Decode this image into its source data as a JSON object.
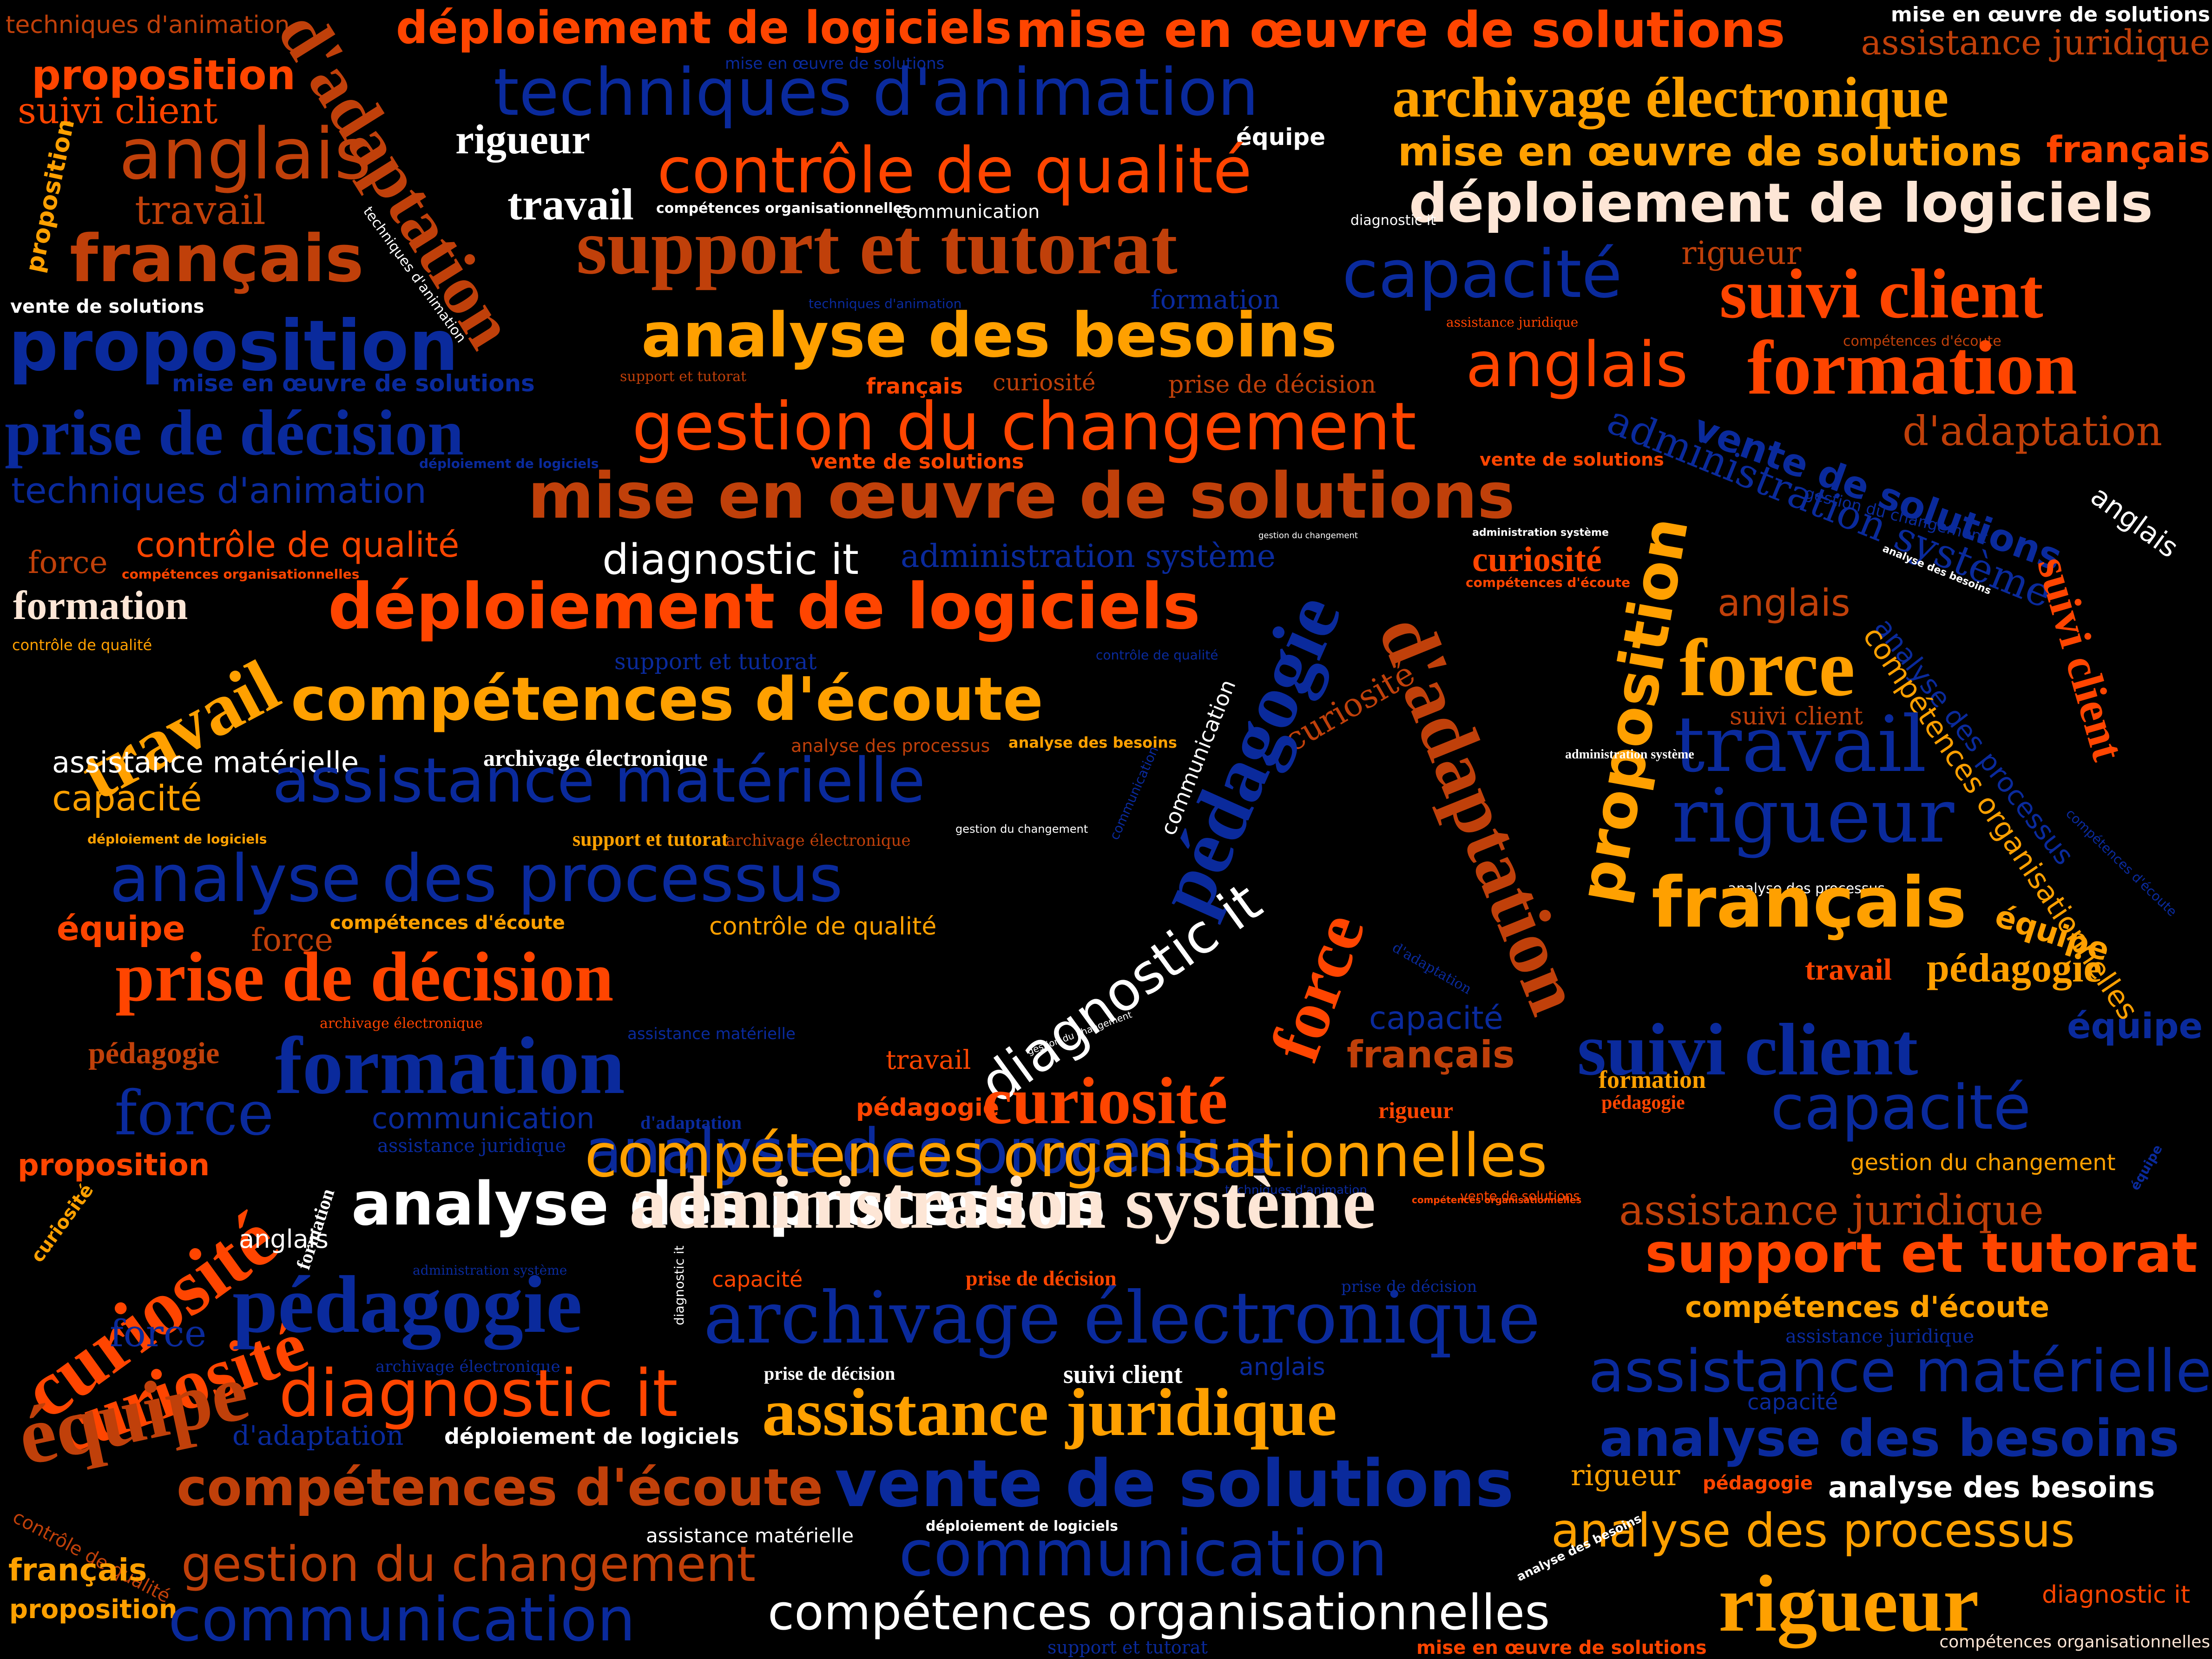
{
  "palette": {
    "blue": "#0a2a9c",
    "orange": "#ff5a1a",
    "red_orange": "#ff4500",
    "brown": "#c0400a",
    "amber": "#ffa000",
    "cream": "#fde6d6",
    "white": "#ffffff"
  },
  "words": [
    {
      "text": "techniques d'animation",
      "color": "brown"
    },
    {
      "text": "déploiement de logiciels",
      "color": "red_orange"
    },
    {
      "text": "mise en œuvre de solutions",
      "color": "red_orange"
    },
    {
      "text": "mise en œuvre de solutions",
      "color": "white"
    },
    {
      "text": "proposition",
      "color": "red_orange"
    },
    {
      "text": "d'adaptation",
      "color": "brown"
    },
    {
      "text": "techniques d'animation",
      "color": "blue"
    },
    {
      "text": "mise en œuvre de solutions",
      "color": "blue"
    },
    {
      "text": "assistance juridique",
      "color": "brown"
    },
    {
      "text": "suivi client",
      "color": "red_orange"
    },
    {
      "text": "archivage électronique",
      "color": "amber"
    },
    {
      "text": "anglais",
      "color": "brown"
    },
    {
      "text": "rigueur",
      "color": "white"
    },
    {
      "text": "équipe",
      "color": "white"
    },
    {
      "text": "mise en œuvre de solutions",
      "color": "amber"
    },
    {
      "text": "français",
      "color": "red_orange"
    },
    {
      "text": "proposition",
      "color": "amber"
    },
    {
      "text": "contrôle de qualité",
      "color": "red_orange"
    },
    {
      "text": "travail",
      "color": "brown"
    },
    {
      "text": "travail",
      "color": "white"
    },
    {
      "text": "compétences organisationnelles",
      "color": "white"
    },
    {
      "text": "communication",
      "color": "white"
    },
    {
      "text": "déploiement de logiciels",
      "color": "cream"
    },
    {
      "text": "français",
      "color": "brown"
    },
    {
      "text": "support et tutorat",
      "color": "brown"
    },
    {
      "text": "techniques d'animation",
      "color": "white"
    },
    {
      "text": "diagnostic it",
      "color": "white"
    },
    {
      "text": "capacité",
      "color": "blue"
    },
    {
      "text": "rigueur",
      "color": "brown"
    },
    {
      "text": "vente de solutions",
      "color": "white"
    },
    {
      "text": "techniques d'animation",
      "color": "blue"
    },
    {
      "text": "formation",
      "color": "blue"
    },
    {
      "text": "suivi client",
      "color": "red_orange"
    },
    {
      "text": "proposition",
      "color": "blue"
    },
    {
      "text": "analyse des besoins",
      "color": "amber"
    },
    {
      "text": "assistance juridique",
      "color": "red_orange"
    },
    {
      "text": "compétences d'écoute",
      "color": "brown"
    },
    {
      "text": "anglais",
      "color": "red_orange"
    },
    {
      "text": "formation",
      "color": "red_orange"
    },
    {
      "text": "mise en œuvre de solutions",
      "color": "blue"
    },
    {
      "text": "support et tutorat",
      "color": "brown"
    },
    {
      "text": "français",
      "color": "red_orange"
    },
    {
      "text": "curiosité",
      "color": "brown"
    },
    {
      "text": "prise de décision",
      "color": "brown"
    },
    {
      "text": "gestion du changement",
      "color": "red_orange"
    },
    {
      "text": "prise de décision",
      "color": "blue"
    },
    {
      "text": "d'adaptation",
      "color": "brown"
    },
    {
      "text": "administration système",
      "color": "blue"
    },
    {
      "text": "vente de solutions",
      "color": "blue"
    },
    {
      "text": "déploiement de logiciels",
      "color": "blue"
    },
    {
      "text": "vente de solutions",
      "color": "red_orange"
    },
    {
      "text": "vente de solutions",
      "color": "red_orange"
    },
    {
      "text": "gestion du changement",
      "color": "blue"
    },
    {
      "text": "anglais",
      "color": "white"
    },
    {
      "text": "techniques d'animation",
      "color": "blue"
    },
    {
      "text": "mise en œuvre de solutions",
      "color": "brown"
    },
    {
      "text": "gestion du changement",
      "color": "white"
    },
    {
      "text": "administration système",
      "color": "white"
    },
    {
      "text": "analyse des besoins",
      "color": "white"
    },
    {
      "text": "force",
      "color": "brown"
    },
    {
      "text": "contrôle de qualité",
      "color": "red_orange"
    },
    {
      "text": "diagnostic it",
      "color": "white"
    },
    {
      "text": "administration système",
      "color": "blue"
    },
    {
      "text": "curiosité",
      "color": "red_orange"
    },
    {
      "text": "suivi client",
      "color": "red_orange"
    },
    {
      "text": "compétences organisationnelles",
      "color": "red_orange"
    },
    {
      "text": "compétences d'écoute",
      "color": "red_orange"
    },
    {
      "text": "formation",
      "color": "cream"
    },
    {
      "text": "déploiement de logiciels",
      "color": "red_orange"
    },
    {
      "text": "anglais",
      "color": "brown"
    },
    {
      "text": "travail",
      "color": "amber"
    },
    {
      "text": "d'adaptation",
      "color": "brown"
    },
    {
      "text": "proposition",
      "color": "amber"
    },
    {
      "text": "contrôle de qualité",
      "color": "amber"
    },
    {
      "text": "support et tutorat",
      "color": "blue"
    },
    {
      "text": "contrôle de qualité",
      "color": "blue"
    },
    {
      "text": "force",
      "color": "amber"
    },
    {
      "text": "compétences d'écoute",
      "color": "amber"
    },
    {
      "text": "curiosité",
      "color": "brown"
    },
    {
      "text": "analyse des processus",
      "color": "blue"
    },
    {
      "text": "compétences organisationnelles",
      "color": "amber"
    },
    {
      "text": "archivage électronique",
      "color": "white"
    },
    {
      "text": "analyse des processus",
      "color": "brown"
    },
    {
      "text": "analyse des besoins",
      "color": "amber"
    },
    {
      "text": "suivi client",
      "color": "brown"
    },
    {
      "text": "travail",
      "color": "blue"
    },
    {
      "text": "assistance matérielle",
      "color": "white"
    },
    {
      "text": "assistance matérielle",
      "color": "blue"
    },
    {
      "text": "capacité",
      "color": "amber"
    },
    {
      "text": "pédagogie",
      "color": "blue"
    },
    {
      "text": "communication",
      "color": "white"
    },
    {
      "text": "administration système",
      "color": "white"
    },
    {
      "text": "rigueur",
      "color": "blue"
    },
    {
      "text": "compétences d'écoute",
      "color": "blue"
    },
    {
      "text": "déploiement de logiciels",
      "color": "amber"
    },
    {
      "text": "support et tutorat",
      "color": "amber"
    },
    {
      "text": "archivage électronique",
      "color": "brown"
    },
    {
      "text": "gestion du changement",
      "color": "white"
    },
    {
      "text": "analyse des processus",
      "color": "blue"
    },
    {
      "text": "communication",
      "color": "blue"
    },
    {
      "text": "analyse des processus",
      "color": "white"
    },
    {
      "text": "français",
      "color": "amber"
    },
    {
      "text": "équipe",
      "color": "red_orange"
    },
    {
      "text": "force",
      "color": "brown"
    },
    {
      "text": "compétences d'écoute",
      "color": "amber"
    },
    {
      "text": "contrôle de qualité",
      "color": "amber"
    },
    {
      "text": "équipe",
      "color": "amber"
    },
    {
      "text": "force",
      "color": "red_orange"
    },
    {
      "text": "d'adaptation",
      "color": "blue"
    },
    {
      "text": "prise de décision",
      "color": "red_orange"
    },
    {
      "text": "diagnostic it",
      "color": "white"
    },
    {
      "text": "travail",
      "color": "red_orange"
    },
    {
      "text": "pédagogie",
      "color": "amber"
    },
    {
      "text": "archivage électronique",
      "color": "red_orange"
    },
    {
      "text": "assistance matérielle",
      "color": "blue"
    },
    {
      "text": "capacité",
      "color": "blue"
    },
    {
      "text": "pédagogie",
      "color": "brown"
    },
    {
      "text": "formation",
      "color": "blue"
    },
    {
      "text": "gestion du changement",
      "color": "white"
    },
    {
      "text": "travail",
      "color": "red_orange"
    },
    {
      "text": "suivi client",
      "color": "blue"
    },
    {
      "text": "équipe",
      "color": "blue"
    },
    {
      "text": "français",
      "color": "brown"
    },
    {
      "text": "pédagogie",
      "color": "red_orange"
    },
    {
      "text": "force",
      "color": "blue"
    },
    {
      "text": "curiosité",
      "color": "red_orange"
    },
    {
      "text": "formation",
      "color": "amber"
    },
    {
      "text": "communication",
      "color": "blue"
    },
    {
      "text": "d'adaptation",
      "color": "blue"
    },
    {
      "text": "rigueur",
      "color": "red_orange"
    },
    {
      "text": "pédagogie",
      "color": "red_orange"
    },
    {
      "text": "capacité",
      "color": "blue"
    },
    {
      "text": "analyse des processus",
      "color": "blue"
    },
    {
      "text": "proposition",
      "color": "red_orange"
    },
    {
      "text": "curiosité",
      "color": "red_orange"
    },
    {
      "text": "assistance juridique",
      "color": "blue"
    },
    {
      "text": "compétences organisationnelles",
      "color": "amber"
    },
    {
      "text": "gestion du changement",
      "color": "amber"
    },
    {
      "text": "formation",
      "color": "white"
    },
    {
      "text": "analyse des processus",
      "color": "white"
    },
    {
      "text": "techniques d'animation",
      "color": "blue"
    },
    {
      "text": "vente de solutions",
      "color": "red_orange"
    },
    {
      "text": "équipe",
      "color": "blue"
    },
    {
      "text": "compétences organisationnelles",
      "color": "red_orange"
    },
    {
      "text": "assistance juridique",
      "color": "brown"
    },
    {
      "text": "curiosité",
      "color": "amber"
    },
    {
      "text": "administration système",
      "color": "cream"
    },
    {
      "text": "anglais",
      "color": "white"
    },
    {
      "text": "curiosité",
      "color": "red_orange"
    },
    {
      "text": "support et tutorat",
      "color": "red_orange"
    },
    {
      "text": "administration système",
      "color": "blue"
    },
    {
      "text": "capacité",
      "color": "red_orange"
    },
    {
      "text": "prise de décision",
      "color": "red_orange"
    },
    {
      "text": "prise de décision",
      "color": "blue"
    },
    {
      "text": "diagnostic it",
      "color": "white"
    },
    {
      "text": "compétences d'écoute",
      "color": "amber"
    },
    {
      "text": "force",
      "color": "blue"
    },
    {
      "text": "pédagogie",
      "color": "blue"
    },
    {
      "text": "archivage électronique",
      "color": "blue"
    },
    {
      "text": "assistance juridique",
      "color": "blue"
    },
    {
      "text": "archivage électronique",
      "color": "blue"
    },
    {
      "text": "prise de décision",
      "color": "white"
    },
    {
      "text": "suivi client",
      "color": "white"
    },
    {
      "text": "anglais",
      "color": "blue"
    },
    {
      "text": "assistance matérielle",
      "color": "blue"
    },
    {
      "text": "équipe",
      "color": "brown"
    },
    {
      "text": "diagnostic it",
      "color": "red_orange"
    },
    {
      "text": "assistance juridique",
      "color": "amber"
    },
    {
      "text": "capacité",
      "color": "blue"
    },
    {
      "text": "d'adaptation",
      "color": "blue"
    },
    {
      "text": "déploiement de logiciels",
      "color": "white"
    },
    {
      "text": "analyse des besoins",
      "color": "blue"
    },
    {
      "text": "compétences d'écoute",
      "color": "brown"
    },
    {
      "text": "vente de solutions",
      "color": "blue"
    },
    {
      "text": "rigueur",
      "color": "amber"
    },
    {
      "text": "pédagogie",
      "color": "red_orange"
    },
    {
      "text": "analyse des besoins",
      "color": "white"
    },
    {
      "text": "contrôle de qualité",
      "color": "brown"
    },
    {
      "text": "analyse des processus",
      "color": "amber"
    },
    {
      "text": "assistance matérielle",
      "color": "white"
    },
    {
      "text": "déploiement de logiciels",
      "color": "white"
    },
    {
      "text": "analyse des besoins",
      "color": "white"
    },
    {
      "text": "gestion du changement",
      "color": "brown"
    },
    {
      "text": "communication",
      "color": "blue"
    },
    {
      "text": "français",
      "color": "amber"
    },
    {
      "text": "proposition",
      "color": "amber"
    },
    {
      "text": "communication",
      "color": "blue"
    },
    {
      "text": "compétences organisationnelles",
      "color": "white"
    },
    {
      "text": "rigueur",
      "color": "amber"
    },
    {
      "text": "diagnostic it",
      "color": "red_orange"
    },
    {
      "text": "support et tutorat",
      "color": "blue"
    },
    {
      "text": "mise en œuvre de solutions",
      "color": "red_orange"
    },
    {
      "text": "compétences organisationnelles",
      "color": "cream"
    }
  ]
}
